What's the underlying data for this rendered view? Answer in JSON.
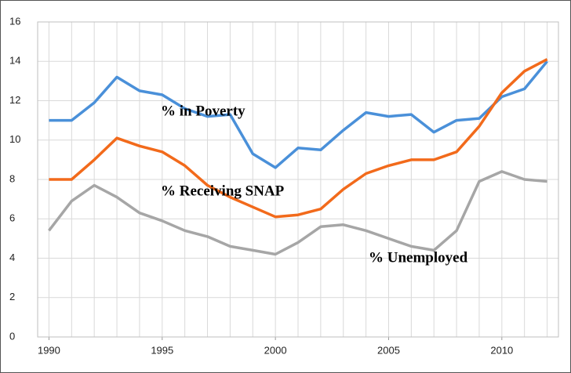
{
  "chart_data": {
    "type": "line",
    "x": [
      1990,
      1991,
      1992,
      1993,
      1994,
      1995,
      1996,
      1997,
      1998,
      1999,
      2000,
      2001,
      2002,
      2003,
      2004,
      2005,
      2006,
      2007,
      2008,
      2009,
      2010,
      2011,
      2012
    ],
    "series": [
      {
        "name": "% in Poverty",
        "color": "#4a90d9",
        "values": [
          11.0,
          11.0,
          11.9,
          13.2,
          12.5,
          12.3,
          11.6,
          11.2,
          11.3,
          9.3,
          8.6,
          9.6,
          9.5,
          10.5,
          11.4,
          11.2,
          11.3,
          10.4,
          11.0,
          11.1,
          12.2,
          12.6,
          14.0
        ]
      },
      {
        "name": "% Receiving SNAP",
        "color": "#f26a1b",
        "values": [
          8.0,
          8.0,
          9.0,
          10.1,
          9.7,
          9.4,
          8.7,
          7.7,
          7.1,
          6.6,
          6.1,
          6.2,
          6.5,
          7.5,
          8.3,
          8.7,
          9.0,
          9.0,
          9.4,
          10.7,
          12.4,
          13.5,
          14.1
        ]
      },
      {
        "name": "% Unemployed",
        "color": "#a6a6a6",
        "values": [
          5.4,
          6.9,
          7.7,
          7.1,
          6.3,
          5.9,
          5.4,
          5.1,
          4.6,
          4.4,
          4.2,
          4.8,
          5.6,
          5.7,
          5.4,
          5.0,
          4.6,
          4.4,
          5.4,
          7.9,
          8.4,
          8.0,
          7.9
        ]
      }
    ],
    "xlim": [
      1989.5,
      2012.5
    ],
    "xticks": [
      1990,
      1995,
      2000,
      2005,
      2010
    ],
    "ylim": [
      0,
      16
    ],
    "yticks": [
      0,
      2,
      4,
      6,
      8,
      10,
      12,
      14,
      16
    ],
    "grid": true
  }
}
